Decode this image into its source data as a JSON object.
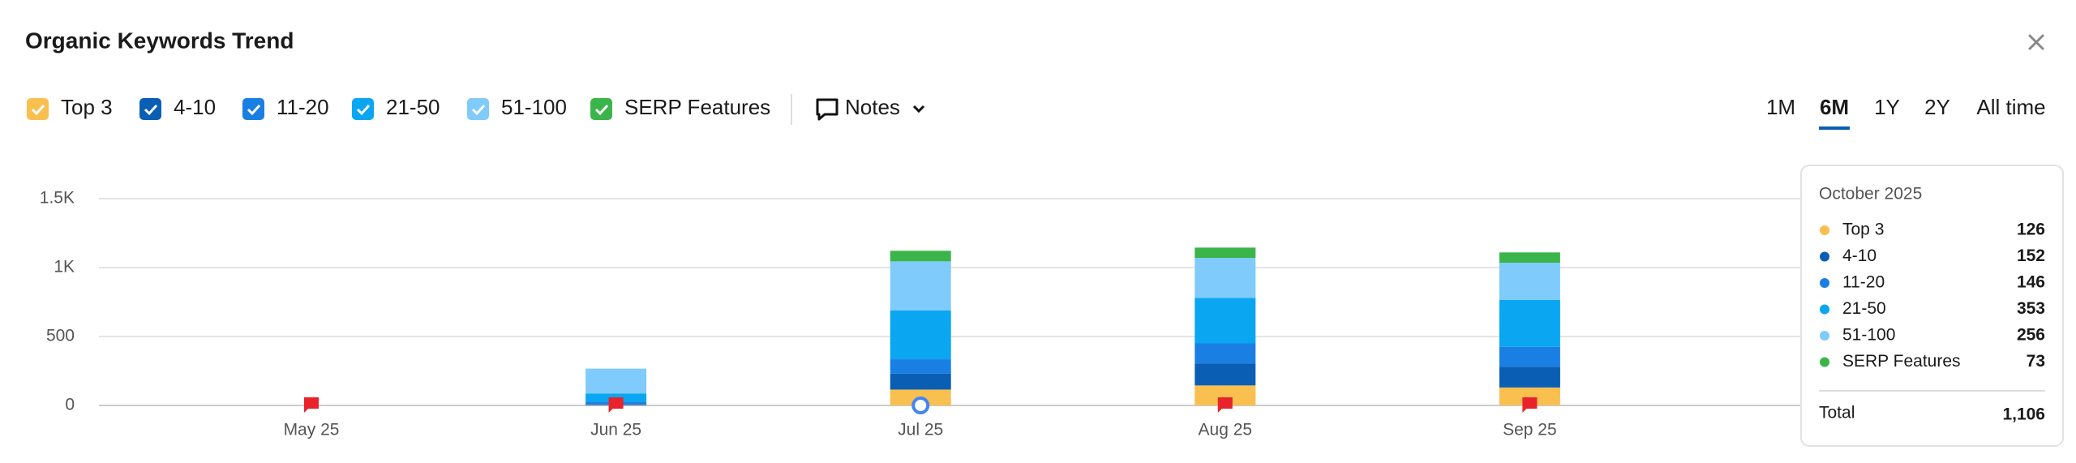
{
  "chart_data": {
    "type": "stacked-bar",
    "title": "Organic Keywords Trend",
    "categories": [
      "May 25",
      "Jun 25",
      "Jul 25",
      "Aug 25",
      "Sep 25",
      null
    ],
    "series": [
      {
        "name": "Top 3",
        "color": "#f9bf4f",
        "values": [
          0,
          2,
          115,
          145,
          130,
          126
        ]
      },
      {
        "name": "4-10",
        "color": "#0a5fb4",
        "values": [
          0,
          5,
          115,
          160,
          150,
          152
        ]
      },
      {
        "name": "11-20",
        "color": "#1a7fe3",
        "values": [
          0,
          20,
          105,
          145,
          145,
          146
        ]
      },
      {
        "name": "21-50",
        "color": "#0aa6f2",
        "values": [
          0,
          60,
          355,
          330,
          340,
          353
        ]
      },
      {
        "name": "51-100",
        "color": "#7fcbfb",
        "values": [
          0,
          180,
          355,
          290,
          270,
          256
        ]
      },
      {
        "name": "SERP Features",
        "color": "#3bb54a",
        "values": [
          0,
          0,
          77,
          75,
          75,
          73
        ]
      }
    ],
    "ylim": [
      0,
      1500
    ],
    "yticks": [
      0,
      500,
      {
        "value": 1000,
        "label": "1K"
      },
      {
        "value": 1500,
        "label": "1.5K"
      }
    ],
    "grid": true
  },
  "ui": {
    "notes": "Notes",
    "time_ranges": [
      "1M",
      "6M",
      "1Y",
      "2Y",
      "All time"
    ]
  },
  "tooltip": {
    "title": "October 2025",
    "total_label": "Total",
    "total": "1,106"
  }
}
